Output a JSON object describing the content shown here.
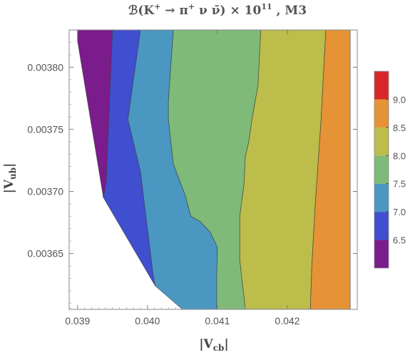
{
  "chart_data": {
    "type": "contour",
    "title": {
      "prefix": "ℬ(K",
      "sup1": "+",
      "arrow": " → π",
      "sup2": "+",
      "rest": " ν ν̄) × 10",
      "sup3": "11",
      "suffix": " , M3"
    },
    "xlabel": {
      "main": "|V",
      "sub": "cb",
      "end": "|"
    },
    "ylabel": {
      "main": "|V",
      "sub": "ub",
      "end": "|"
    },
    "xlim": [
      0.03888,
      0.043
    ],
    "ylim": [
      0.036605,
      0.03683
    ],
    "ylim_data": [
      0.003605,
      0.00383
    ],
    "x_ticks": [
      {
        "value": 0.039,
        "label": "0.039"
      },
      {
        "value": 0.04,
        "label": "0.040"
      },
      {
        "value": 0.041,
        "label": "0.041"
      },
      {
        "value": 0.042,
        "label": "0.042"
      }
    ],
    "y_ticks": [
      {
        "value": 0.00365,
        "label": "0.00365"
      },
      {
        "value": 0.0037,
        "label": "0.00370"
      },
      {
        "value": 0.00375,
        "label": "0.00375"
      },
      {
        "value": 0.0038,
        "label": "0.00380"
      }
    ],
    "colorbar": {
      "range": [
        6.0,
        9.5
      ],
      "ticks": [
        "6.5",
        "7.0",
        "7.5",
        "8.0",
        "8.5",
        "9.0"
      ],
      "levels": [
        {
          "from": 6.0,
          "to": 6.5,
          "color": "#7a1c8c"
        },
        {
          "from": 6.5,
          "to": 7.0,
          "color": "#3f4fcf"
        },
        {
          "from": 7.0,
          "to": 7.5,
          "color": "#4a97c2"
        },
        {
          "from": 7.5,
          "to": 8.0,
          "color": "#7fba79"
        },
        {
          "from": 8.0,
          "to": 8.5,
          "color": "#bdbd4b"
        },
        {
          "from": 8.5,
          "to": 9.0,
          "color": "#e59336"
        },
        {
          "from": 9.0,
          "to": 9.5,
          "color": "#d8262a"
        }
      ]
    },
    "regions": [
      {
        "level": "6.0–6.5",
        "color": "#7a1c8c",
        "points": [
          [
            0.039,
            0.00383
          ],
          [
            0.0395,
            0.00383
          ],
          [
            0.03941,
            0.003708
          ],
          [
            0.03937,
            0.003695
          ],
          [
            0.039,
            0.003821
          ]
        ]
      },
      {
        "level": "6.5–7.0",
        "color": "#3f4fcf",
        "points": [
          [
            0.0395,
            0.00383
          ],
          [
            0.0399,
            0.00383
          ],
          [
            0.03972,
            0.003758
          ],
          [
            0.0399,
            0.003716
          ],
          [
            0.04008,
            0.003633
          ],
          [
            0.04011,
            0.003624
          ],
          [
            0.03937,
            0.003695
          ],
          [
            0.03941,
            0.003708
          ]
        ]
      },
      {
        "level": "7.0–7.5",
        "color": "#4a97c2",
        "points": [
          [
            0.0399,
            0.00383
          ],
          [
            0.04037,
            0.00383
          ],
          [
            0.0403,
            0.003773
          ],
          [
            0.0403,
            0.003758
          ],
          [
            0.04037,
            0.003722
          ],
          [
            0.04054,
            0.003697
          ],
          [
            0.04062,
            0.00368
          ],
          [
            0.04075,
            0.003676
          ],
          [
            0.0409,
            0.003667
          ],
          [
            0.041,
            0.003655
          ],
          [
            0.04099,
            0.00363
          ],
          [
            0.04099,
            0.003605
          ],
          [
            0.0405,
            0.003605
          ],
          [
            0.04011,
            0.003624
          ],
          [
            0.04008,
            0.003633
          ],
          [
            0.0399,
            0.003716
          ],
          [
            0.03972,
            0.003758
          ]
        ]
      },
      {
        "level": "7.5–8.0",
        "color": "#7fba79",
        "points": [
          [
            0.04037,
            0.00383
          ],
          [
            0.04162,
            0.00383
          ],
          [
            0.04158,
            0.003785
          ],
          [
            0.0415,
            0.00376
          ],
          [
            0.04145,
            0.00374
          ],
          [
            0.0414,
            0.003728
          ],
          [
            0.04138,
            0.003705
          ],
          [
            0.04132,
            0.00368
          ],
          [
            0.04132,
            0.003645
          ],
          [
            0.0414,
            0.003605
          ],
          [
            0.04099,
            0.003605
          ],
          [
            0.04099,
            0.00363
          ],
          [
            0.041,
            0.003655
          ],
          [
            0.0409,
            0.003667
          ],
          [
            0.04075,
            0.003676
          ],
          [
            0.04062,
            0.00368
          ],
          [
            0.04054,
            0.003697
          ],
          [
            0.04037,
            0.003722
          ],
          [
            0.0403,
            0.003758
          ],
          [
            0.0403,
            0.003773
          ]
        ]
      },
      {
        "level": "8.0–8.5",
        "color": "#bdbd4b",
        "points": [
          [
            0.04162,
            0.00383
          ],
          [
            0.04255,
            0.00383
          ],
          [
            0.04248,
            0.003755
          ],
          [
            0.0424,
            0.00369
          ],
          [
            0.04235,
            0.00364
          ],
          [
            0.04233,
            0.003605
          ],
          [
            0.0414,
            0.003605
          ],
          [
            0.04132,
            0.003645
          ],
          [
            0.04132,
            0.00368
          ],
          [
            0.04138,
            0.003705
          ],
          [
            0.0414,
            0.003728
          ],
          [
            0.04145,
            0.00374
          ],
          [
            0.0415,
            0.00376
          ],
          [
            0.04158,
            0.003785
          ]
        ]
      },
      {
        "level": "8.5–9.0",
        "color": "#e59336",
        "points": [
          [
            0.04255,
            0.00383
          ],
          [
            0.0429,
            0.00383
          ],
          [
            0.0429,
            0.003605
          ],
          [
            0.04233,
            0.003605
          ],
          [
            0.04235,
            0.00364
          ],
          [
            0.0424,
            0.00369
          ],
          [
            0.04248,
            0.003755
          ]
        ]
      }
    ]
  }
}
